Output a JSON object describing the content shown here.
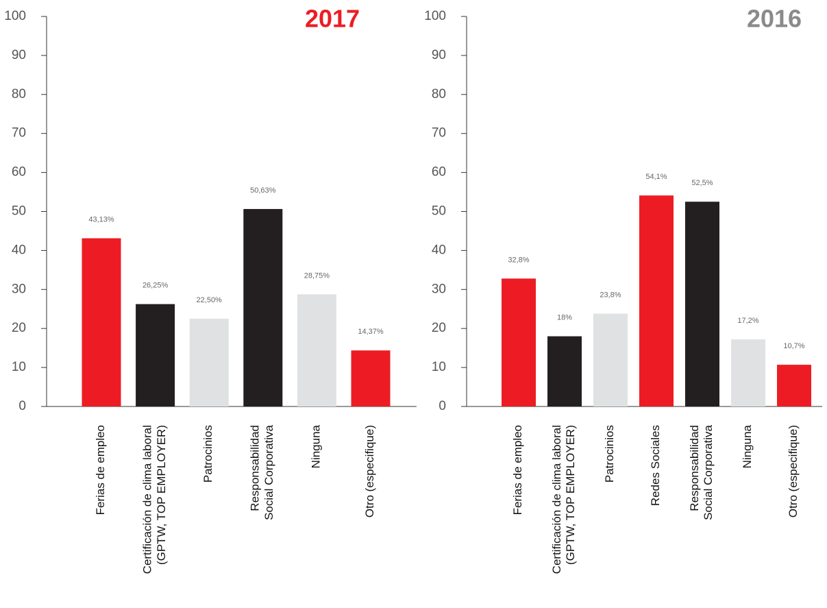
{
  "chart_data": [
    {
      "type": "bar",
      "title": "2017",
      "title_color": "#ed1c24",
      "categories": [
        "Ferias de empleo",
        "Certificación de clima laboral\n(GPTW, TOP EMPLOYER)",
        "Patrocinios",
        "Responsabilidad\nSocial Corporativa",
        "Ninguna",
        "Otro (especifique)"
      ],
      "values": [
        43.13,
        26.25,
        22.5,
        50.63,
        28.75,
        14.37
      ],
      "value_labels": [
        "43,13%",
        "26,25%",
        "22,50%",
        "50,63%",
        "28,75%",
        "14,37%"
      ],
      "colors": [
        "#ed1c24",
        "#231f20",
        "#dfe1e2",
        "#231f20",
        "#dfe1e2",
        "#ed1c24"
      ],
      "ylim": [
        0,
        100
      ],
      "yticks": [
        0,
        10,
        20,
        30,
        40,
        50,
        60,
        70,
        80,
        90,
        100
      ]
    },
    {
      "type": "bar",
      "title": "2016",
      "title_color": "#8a8a8a",
      "categories": [
        "Ferias de empleo",
        "Certificación de clima laboral\n(GPTW, TOP EMPLOYER)",
        "Patrocinios",
        "Redes Sociales",
        "Responsabilidad\nSocial Corporativa",
        "Ninguna",
        "Otro (especifique)"
      ],
      "values": [
        32.8,
        18,
        23.8,
        54.1,
        52.5,
        17.2,
        10.7
      ],
      "value_labels": [
        "32,8%",
        "18%",
        "23,8%",
        "54,1%",
        "52,5%",
        "17,2%",
        "10,7%"
      ],
      "colors": [
        "#ed1c24",
        "#231f20",
        "#dfe1e2",
        "#ed1c24",
        "#231f20",
        "#dfe1e2",
        "#ed1c24"
      ],
      "ylim": [
        0,
        100
      ],
      "yticks": [
        0,
        10,
        20,
        30,
        40,
        50,
        60,
        70,
        80,
        90,
        100
      ]
    }
  ]
}
